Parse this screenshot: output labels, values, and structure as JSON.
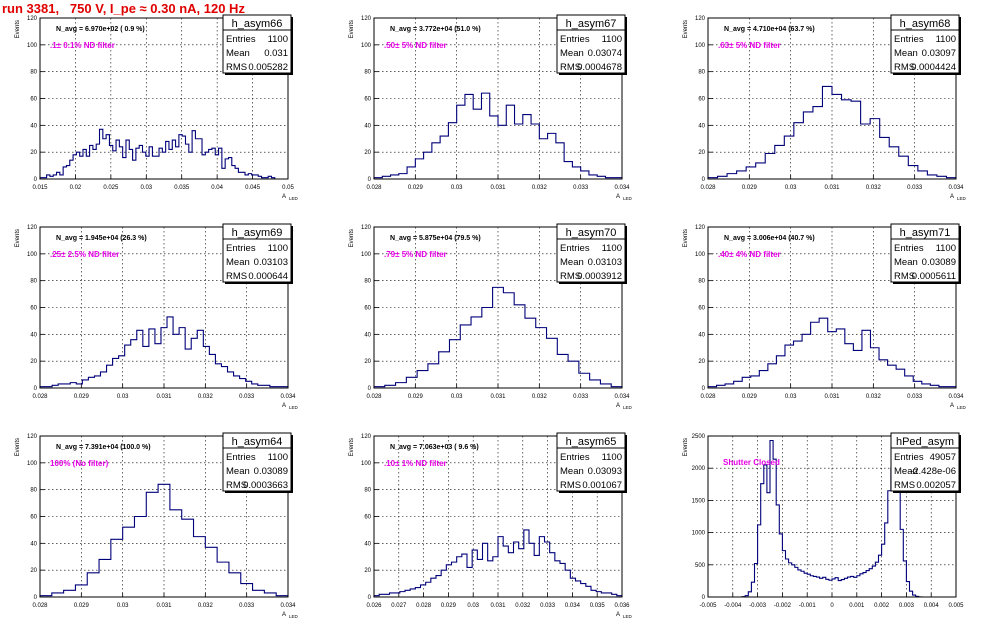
{
  "page": {
    "title": "run 3381,   750 V, I_pe ≈ 0.30 nA, 120 Hz"
  },
  "chart_data": [
    {
      "type": "histogram",
      "name": "h_asym66",
      "stats": {
        "Entries": "1100",
        "Mean": "0.031",
        "RMS": "0.005282"
      },
      "navg": "N_avg = 6.970e+02 ( 0.9 %)",
      "filter": ".1± 0.1% ND filter",
      "xlabel": "A",
      "xsub": "LED",
      "ylabel": "Events",
      "xlim": [
        0.015,
        0.05
      ],
      "ylim": [
        0,
        120
      ],
      "xticks": [
        "0.015",
        "0.02",
        "0.025",
        "0.03",
        "0.035",
        "0.04",
        "0.045",
        "0.05"
      ],
      "yticks": [
        "0",
        "20",
        "40",
        "60",
        "80",
        "100",
        "120"
      ],
      "values": [
        1,
        1,
        3,
        2,
        3,
        5,
        3,
        9,
        10,
        14,
        18,
        20,
        17,
        22,
        17,
        25,
        22,
        26,
        37,
        30,
        33,
        25,
        21,
        29,
        24,
        16,
        29,
        22,
        14,
        23,
        25,
        20,
        17,
        24,
        17,
        17,
        23,
        20,
        28,
        22,
        29,
        24,
        33,
        32,
        26,
        20,
        36,
        30,
        30,
        18,
        20,
        22,
        23,
        18,
        23,
        8,
        15,
        16,
        10,
        8,
        5,
        5,
        3,
        4,
        3,
        3,
        2,
        1,
        1,
        2,
        1,
        0,
        0,
        0,
        0
      ]
    },
    {
      "type": "histogram",
      "name": "h_asym67",
      "stats": {
        "Entries": "1100",
        "Mean": "0.03074",
        "RMS": "0.0004678"
      },
      "navg": "N_avg = 3.772e+04 (51.0 %)",
      "filter": ".50± 5% ND filter",
      "xlabel": "A",
      "xsub": "LED",
      "ylabel": "Events",
      "xlim": [
        0.028,
        0.034
      ],
      "ylim": [
        0,
        120
      ],
      "xticks": [
        "0.028",
        "0.029",
        "0.03",
        "0.031",
        "0.032",
        "0.033",
        "0.034"
      ],
      "yticks": [
        "0",
        "20",
        "40",
        "60",
        "80",
        "100",
        "120"
      ],
      "values": [
        1,
        2,
        3,
        4,
        9,
        15,
        20,
        27,
        32,
        42,
        55,
        63,
        52,
        64,
        47,
        40,
        55,
        41,
        48,
        41,
        30,
        34,
        27,
        13,
        9,
        6,
        3,
        2,
        1,
        1
      ]
    },
    {
      "type": "histogram",
      "name": "h_asym68",
      "stats": {
        "Entries": "1100",
        "Mean": "0.03097",
        "RMS": "0.0004424"
      },
      "navg": "N_avg = 4.710e+04 (63.7 %)",
      "filter": ".63± 5% ND filter",
      "xlabel": "A",
      "xsub": "LED",
      "ylabel": "Events",
      "xlim": [
        0.028,
        0.034
      ],
      "ylim": [
        0,
        120
      ],
      "xticks": [
        "0.028",
        "0.029",
        "0.03",
        "0.031",
        "0.032",
        "0.033",
        "0.034"
      ],
      "yticks": [
        "0",
        "20",
        "40",
        "60",
        "80",
        "100",
        "120"
      ],
      "values": [
        1,
        2,
        4,
        6,
        9,
        12,
        19,
        25,
        32,
        42,
        50,
        54,
        69,
        63,
        59,
        58,
        41,
        45,
        31,
        24,
        17,
        10,
        6,
        3,
        2,
        1
      ]
    },
    {
      "type": "histogram",
      "name": "h_asym69",
      "stats": {
        "Entries": "1100",
        "Mean": "0.03103",
        "RMS": "0.000644"
      },
      "navg": "N_avg = 1.945e+04 (26.3 %)",
      "filter": ".25± 2.5% ND filter",
      "xlabel": "A",
      "xsub": "LED",
      "ylabel": "Events",
      "xlim": [
        0.028,
        0.034
      ],
      "ylim": [
        0,
        120
      ],
      "xticks": [
        "0.028",
        "0.029",
        "0.03",
        "0.031",
        "0.032",
        "0.033",
        "0.034"
      ],
      "yticks": [
        "0",
        "20",
        "40",
        "60",
        "80",
        "100",
        "120"
      ],
      "values": [
        1,
        1,
        2,
        3,
        3,
        4,
        3,
        6,
        8,
        9,
        12,
        17,
        22,
        24,
        32,
        36,
        43,
        31,
        44,
        33,
        45,
        53,
        40,
        45,
        29,
        37,
        43,
        31,
        25,
        18,
        16,
        12,
        9,
        7,
        5,
        3,
        2,
        2,
        1,
        1,
        1
      ]
    },
    {
      "type": "histogram",
      "name": "h_asym70",
      "stats": {
        "Entries": "1100",
        "Mean": "0.03103",
        "RMS": "0.0003912"
      },
      "navg": "N_avg = 5.875e+04 (79.5 %)",
      "filter": ".79± 5% ND filter",
      "xlabel": "A",
      "xsub": "LED",
      "ylabel": "Events",
      "xlim": [
        0.028,
        0.034
      ],
      "ylim": [
        0,
        120
      ],
      "xticks": [
        "0.028",
        "0.029",
        "0.03",
        "0.031",
        "0.032",
        "0.033",
        "0.034"
      ],
      "yticks": [
        "0",
        "20",
        "40",
        "60",
        "80",
        "100",
        "120"
      ],
      "values": [
        1,
        2,
        4,
        8,
        13,
        18,
        27,
        36,
        47,
        53,
        60,
        75,
        71,
        62,
        52,
        45,
        37,
        25,
        20,
        11,
        6,
        3,
        1
      ]
    },
    {
      "type": "histogram",
      "name": "h_asym71",
      "stats": {
        "Entries": "1100",
        "Mean": "0.03089",
        "RMS": "0.0005611"
      },
      "navg": "N_avg = 3.006e+04 (40.7 %)",
      "filter": ".40± 4% ND filter",
      "xlabel": "A",
      "xsub": "LED",
      "ylabel": "Events",
      "xlim": [
        0.028,
        0.034
      ],
      "ylim": [
        0,
        120
      ],
      "xticks": [
        "0.028",
        "0.029",
        "0.03",
        "0.031",
        "0.032",
        "0.033",
        "0.034"
      ],
      "yticks": [
        "0",
        "20",
        "40",
        "60",
        "80",
        "100",
        "120"
      ],
      "values": [
        1,
        2,
        3,
        5,
        8,
        9,
        13,
        18,
        24,
        32,
        35,
        40,
        49,
        52,
        42,
        44,
        33,
        28,
        43,
        30,
        21,
        17,
        14,
        9,
        5,
        3,
        2,
        1,
        1
      ]
    },
    {
      "type": "histogram",
      "name": "h_asym64",
      "stats": {
        "Entries": "1100",
        "Mean": "0.03089",
        "RMS": "0.0003663"
      },
      "navg": "N_avg = 7.391e+04 (100.0 %)",
      "filter": "100% (No filter)",
      "xlabel": "A",
      "xsub": "LED",
      "ylabel": "Events",
      "xlim": [
        0.028,
        0.034
      ],
      "ylim": [
        0,
        120
      ],
      "xticks": [
        "0.028",
        "0.029",
        "0.03",
        "0.031",
        "0.032",
        "0.033",
        "0.034"
      ],
      "yticks": [
        "0",
        "20",
        "40",
        "60",
        "80",
        "100",
        "120"
      ],
      "values": [
        1,
        3,
        5,
        9,
        18,
        28,
        43,
        52,
        60,
        78,
        84,
        65,
        58,
        45,
        37,
        26,
        18,
        10,
        5,
        3,
        1
      ]
    },
    {
      "type": "histogram",
      "name": "h_asym65",
      "stats": {
        "Entries": "1100",
        "Mean": "0.03093",
        "RMS": "0.001067"
      },
      "navg": "N_avg = 7.063e+03 ( 9.6 %)",
      "filter": ".10± 1% ND filter",
      "xlabel": "A",
      "xsub": "LED",
      "ylabel": "Events",
      "xlim": [
        0.026,
        0.036
      ],
      "ylim": [
        0,
        120
      ],
      "xticks": [
        "0.026",
        "0.027",
        "0.028",
        "0.029",
        "0.03",
        "0.031",
        "0.032",
        "0.033",
        "0.034",
        "0.035",
        "0.036"
      ],
      "yticks": [
        "0",
        "20",
        "40",
        "60",
        "80",
        "100",
        "120"
      ],
      "values": [
        1,
        2,
        2,
        3,
        3,
        4,
        5,
        6,
        7,
        9,
        11,
        14,
        16,
        20,
        24,
        26,
        30,
        32,
        22,
        35,
        28,
        40,
        27,
        30,
        45,
        38,
        33,
        41,
        36,
        50,
        40,
        31,
        45,
        41,
        33,
        27,
        25,
        20,
        14,
        12,
        10,
        8,
        5,
        4,
        3,
        3,
        2,
        1
      ]
    },
    {
      "type": "histogram",
      "name": "hPed_asym",
      "stats": {
        "Entries": "49057",
        "Mean": "-2.428e-06",
        "RMS": "0.002057"
      },
      "navg": "",
      "filter": "Shutter Closed",
      "xlabel": "",
      "xsub": "",
      "ylabel": "Events",
      "xlim": [
        -0.005,
        0.005
      ],
      "ylim": [
        0,
        2500
      ],
      "xticks": [
        "-0.005",
        "-0.004",
        "-0.003",
        "-0.002",
        "-0.001",
        "0",
        "0.001",
        "0.002",
        "0.003",
        "0.004",
        "0.005"
      ],
      "yticks": [
        "0",
        "500",
        "1000",
        "1500",
        "2000",
        "2500"
      ],
      "values": [
        0,
        0,
        0,
        0,
        0,
        0,
        0,
        0,
        0,
        0,
        0,
        5,
        20,
        80,
        230,
        520,
        1120,
        1760,
        2050,
        1620,
        2430,
        2140,
        1430,
        980,
        720,
        590,
        530,
        500,
        460,
        420,
        400,
        370,
        355,
        330,
        320,
        310,
        290,
        305,
        275,
        260,
        280,
        300,
        255,
        270,
        290,
        310,
        320,
        305,
        330,
        360,
        380,
        410,
        440,
        480,
        540,
        650,
        820,
        1150,
        1650,
        2000,
        2300,
        1800,
        1050,
        560,
        240,
        90,
        30,
        8,
        2,
        0,
        0,
        0,
        0,
        0,
        0,
        0,
        0,
        0,
        0,
        0
      ]
    }
  ]
}
